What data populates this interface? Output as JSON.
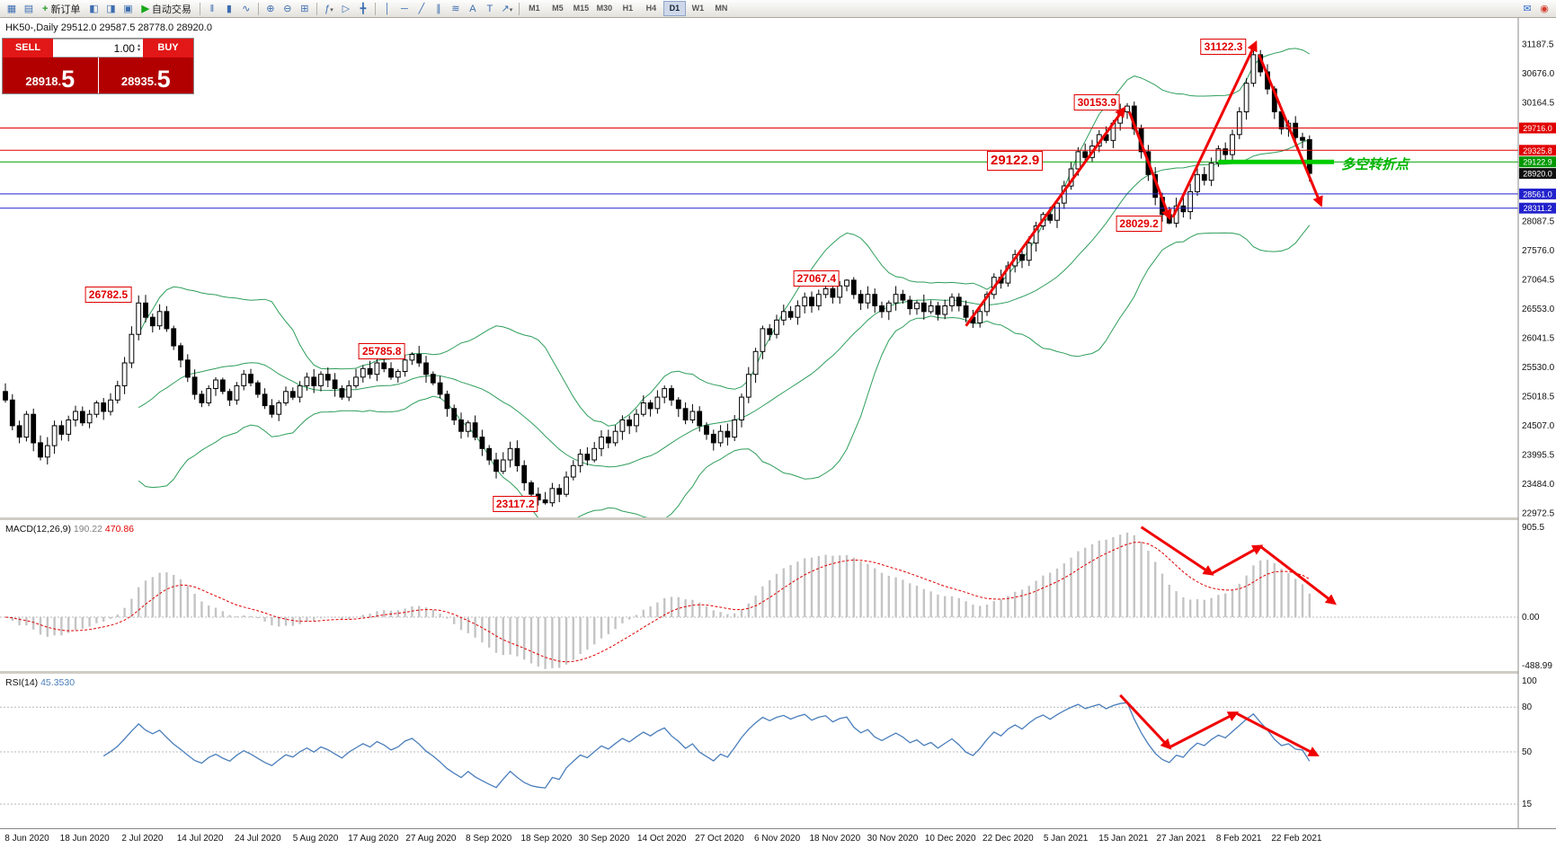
{
  "toolbar": {
    "items": [
      {
        "kind": "icon",
        "name": "new-chart-icon",
        "glyph": "▦"
      },
      {
        "kind": "icon",
        "name": "chart-profiles-icon",
        "glyph": "▤"
      },
      {
        "kind": "button",
        "name": "new-order-button",
        "icon_name": "new-order-plus-icon",
        "glyph": "+",
        "glyph_color": "#2a9a2a",
        "label": "新订单"
      },
      {
        "kind": "icon",
        "name": "market-watch-icon",
        "glyph": "◧"
      },
      {
        "kind": "icon",
        "name": "navigator-icon",
        "glyph": "◨"
      },
      {
        "kind": "icon",
        "name": "terminal-icon",
        "glyph": "▣"
      },
      {
        "kind": "button",
        "name": "autotrade-button",
        "icon_name": "autotrade-play-icon",
        "glyph": "▶",
        "glyph_color": "#18a818",
        "label": "自动交易"
      },
      {
        "kind": "sep"
      },
      {
        "kind": "icon",
        "name": "bar-chart-mode-icon",
        "glyph": "‖"
      },
      {
        "kind": "icon",
        "name": "candle-chart-mode-icon",
        "glyph": "▮"
      },
      {
        "kind": "icon",
        "name": "line-chart-mode-icon",
        "glyph": "∿"
      },
      {
        "kind": "sep"
      },
      {
        "kind": "icon",
        "name": "zoom-in-icon",
        "glyph": "⊕"
      },
      {
        "kind": "icon",
        "name": "zoom-out-icon",
        "glyph": "⊖"
      },
      {
        "kind": "icon",
        "name": "tile-windows-icon",
        "glyph": "⊞"
      },
      {
        "kind": "sep"
      },
      {
        "kind": "icon",
        "name": "indicators-icon",
        "glyph": "ƒ",
        "dropdown": true
      },
      {
        "kind": "icon",
        "name": "cursor-icon",
        "glyph": "▷"
      },
      {
        "kind": "icon",
        "name": "crosshair-icon",
        "glyph": "╋"
      },
      {
        "kind": "sep"
      },
      {
        "kind": "icon",
        "name": "vertical-line-icon",
        "glyph": "│"
      },
      {
        "kind": "icon",
        "name": "horizontal-line-icon",
        "glyph": "─"
      },
      {
        "kind": "icon",
        "name": "trendline-icon",
        "glyph": "╱"
      },
      {
        "kind": "icon",
        "name": "equidistant-channel-icon",
        "glyph": "∥"
      },
      {
        "kind": "icon",
        "name": "fibonacci-icon",
        "glyph": "≋"
      },
      {
        "kind": "icon",
        "name": "text-tool-icon",
        "glyph": "A"
      },
      {
        "kind": "icon",
        "name": "label-tool-icon",
        "glyph": "T"
      },
      {
        "kind": "icon",
        "name": "arrows-tool-icon",
        "glyph": "↗",
        "dropdown": true
      },
      {
        "kind": "sep"
      },
      {
        "kind": "tf",
        "label": "M1"
      },
      {
        "kind": "tf",
        "label": "M5"
      },
      {
        "kind": "tf",
        "label": "M15"
      },
      {
        "kind": "tf",
        "label": "M30"
      },
      {
        "kind": "tf",
        "label": "H1"
      },
      {
        "kind": "tf",
        "label": "H4"
      },
      {
        "kind": "tf",
        "label": "D1",
        "active": true
      },
      {
        "kind": "tf",
        "label": "W1"
      },
      {
        "kind": "tf",
        "label": "MN"
      },
      {
        "kind": "spacer"
      },
      {
        "kind": "icon",
        "name": "community-icon",
        "glyph": "✉",
        "glyph_color": "#2b6cd4"
      },
      {
        "kind": "icon",
        "name": "alerts-icon",
        "glyph": "◉",
        "glyph_color": "#d43a2b"
      }
    ]
  },
  "chart_info": "HK50-,Daily  29512.0 29587.5 28778.0 28920.0",
  "trade_panel": {
    "sell_label": "SELL",
    "buy_label": "BUY",
    "volume": "1.00",
    "bid_base": "28918.",
    "bid_pips": "5",
    "ask_base": "28935.",
    "ask_pips": "5"
  },
  "icons": {
    "spin_up": "▴",
    "spin_down": "▾"
  },
  "chart_data": {
    "type": "candlestick",
    "symbol": "HK50-",
    "timeframe": "Daily",
    "ohlc": {
      "open": 29512.0,
      "high": 29587.5,
      "low": 28778.0,
      "close": 28920.0
    },
    "closes": [
      24950,
      24500,
      24300,
      24700,
      24200,
      23950,
      24150,
      24500,
      24350,
      24600,
      24750,
      24550,
      24700,
      24900,
      24750,
      24950,
      25200,
      25600,
      26100,
      26650,
      26400,
      26250,
      26500,
      26200,
      25900,
      25650,
      25350,
      25050,
      24900,
      25150,
      25300,
      25100,
      24950,
      25200,
      25400,
      25250,
      25050,
      24850,
      24700,
      24900,
      25100,
      25000,
      25200,
      25350,
      25200,
      25400,
      25300,
      25150,
      25000,
      25200,
      25350,
      25500,
      25400,
      25600,
      25500,
      25350,
      25450,
      25650,
      25750,
      25600,
      25400,
      25250,
      25050,
      24800,
      24600,
      24400,
      24550,
      24300,
      24100,
      23900,
      23700,
      23900,
      24100,
      23800,
      23500,
      23300,
      23200,
      23150,
      23400,
      23300,
      23600,
      23800,
      24000,
      23900,
      24100,
      24300,
      24200,
      24400,
      24600,
      24500,
      24700,
      24900,
      24800,
      25000,
      25150,
      24950,
      24800,
      24600,
      24750,
      24500,
      24350,
      24200,
      24400,
      24300,
      24600,
      25000,
      25400,
      25800,
      26200,
      26100,
      26350,
      26500,
      26400,
      26600,
      26750,
      26600,
      26800,
      26900,
      26750,
      26950,
      27050,
      26800,
      26650,
      26800,
      26600,
      26500,
      26650,
      26800,
      26700,
      26550,
      26650,
      26500,
      26600,
      26450,
      26600,
      26750,
      26600,
      26400,
      26300,
      26500,
      26800,
      27100,
      27000,
      27300,
      27500,
      27400,
      27700,
      28000,
      28200,
      28100,
      28400,
      28700,
      29000,
      29300,
      29200,
      29400,
      29600,
      29500,
      29800,
      30000,
      30100,
      29700,
      29300,
      28900,
      28500,
      28200,
      28050,
      28350,
      28250,
      28600,
      28900,
      28800,
      29100,
      29350,
      29250,
      29600,
      30000,
      30500,
      31000,
      30700,
      30400,
      30000,
      29700,
      29800,
      29550,
      29500,
      28920
    ],
    "key_candles": {
      "19": {
        "high": 26782.5
      },
      "58": {
        "high": 25785.8
      },
      "77": {
        "low": 23117.2
      },
      "120": {
        "high": 27067.4
      },
      "160": {
        "high": 30153.9
      },
      "166": {
        "low": 28029.2
      },
      "178": {
        "high": 31122.3
      },
      "186": {
        "open": 29512.0,
        "high": 29587.5,
        "low": 28778.0
      }
    },
    "x_labels": [
      "8 Jun 2020",
      "18 Jun 2020",
      "2 Jul 2020",
      "14 Jul 2020",
      "24 Jul 2020",
      "5 Aug 2020",
      "17 Aug 2020",
      "27 Aug 2020",
      "8 Sep 2020",
      "18 Sep 2020",
      "30 Sep 2020",
      "14 Oct 2020",
      "27 Oct 2020",
      "6 Nov 2020",
      "18 Nov 2020",
      "30 Nov 2020",
      "10 Dec 2020",
      "22 Dec 2020",
      "5 Jan 2021",
      "15 Jan 2021",
      "27 Jan 2021",
      "8 Feb 2021",
      "22 Feb 2021"
    ],
    "y_axis_ticks": [
      31187.5,
      30676.0,
      30164.5,
      28087.5,
      27576.0,
      27064.5,
      26553.0,
      26041.5,
      25530.0,
      25018.5,
      24507.0,
      23995.5,
      23484.0,
      22972.5
    ],
    "price_lines": [
      {
        "price": 29716.0,
        "color": "#e00000",
        "tag_color": "#e00000"
      },
      {
        "price": 29325.8,
        "color": "#e00000",
        "tag_color": "#e00000"
      },
      {
        "price": 29122.9,
        "color": "#00a000",
        "tag_color": "#009800"
      },
      {
        "price": 28561.0,
        "color": "#2222cc",
        "tag_color": "#2222cc"
      },
      {
        "price": 28311.2,
        "color": "#2222cc",
        "tag_color": "#2222cc"
      }
    ],
    "last_price": {
      "price": 28920.0,
      "tag_color": "#101010"
    },
    "turning_point": {
      "price": 29122.9,
      "from_index": 173,
      "to_index": 189.5,
      "color": "#00cc00",
      "label": "多空转折点"
    },
    "annotations": [
      {
        "text": "26782.5",
        "index": 19,
        "price": 26782.5
      },
      {
        "text": "25785.8",
        "index": 58,
        "price": 25785.8
      },
      {
        "text": "23117.2",
        "index": 77,
        "price": 23117.2
      },
      {
        "text": "27067.4",
        "index": 120,
        "price": 27067.4
      },
      {
        "text": "29122.9",
        "index": 140,
        "price": 29122.9,
        "big": true
      },
      {
        "text": "30153.9",
        "index": 160,
        "price": 30153.9
      },
      {
        "text": "28029.2",
        "index": 166,
        "price": 28029.2
      },
      {
        "text": "31122.3",
        "index": 178,
        "price": 31122.3
      }
    ],
    "indicators": {
      "bollinger": {
        "period": 20,
        "deviation": 2,
        "color": "#2e9e5b"
      },
      "macd": {
        "label": "MACD(12,26,9)",
        "value_main": "190.22",
        "value_signal": "470.86",
        "axis": [
          "905.5",
          "0.00",
          "-488.99"
        ]
      },
      "rsi": {
        "label": "RSI(14)",
        "value": "45.3530",
        "axis": [
          100,
          80,
          50,
          15
        ],
        "levels": [
          80,
          50,
          15
        ],
        "color": "#4a7ebb"
      }
    },
    "arrows": {
      "main": [
        {
          "from": [
            137,
            26250
          ],
          "to": [
            159.5,
            30050
          ]
        },
        {
          "from": [
            160.3,
            30000
          ],
          "to": [
            166,
            28150
          ]
        },
        {
          "from": [
            166.5,
            28150
          ],
          "to": [
            178.3,
            31200
          ]
        },
        {
          "from": [
            178.8,
            31000
          ],
          "to": [
            187.6,
            28380
          ]
        }
      ],
      "macd": [
        {
          "from": [
            162,
            880
          ],
          "to": [
            172,
            424
          ]
        },
        {
          "from": [
            172,
            424
          ],
          "to": [
            179,
            690
          ]
        },
        {
          "from": [
            179,
            690
          ],
          "to": [
            189.5,
            139
          ]
        }
      ],
      "rsi": [
        {
          "from": [
            159,
            88
          ],
          "to": [
            166,
            53
          ]
        },
        {
          "from": [
            166,
            53
          ],
          "to": [
            175.5,
            76
          ]
        },
        {
          "from": [
            175.5,
            76
          ],
          "to": [
            187,
            48
          ]
        }
      ]
    }
  }
}
